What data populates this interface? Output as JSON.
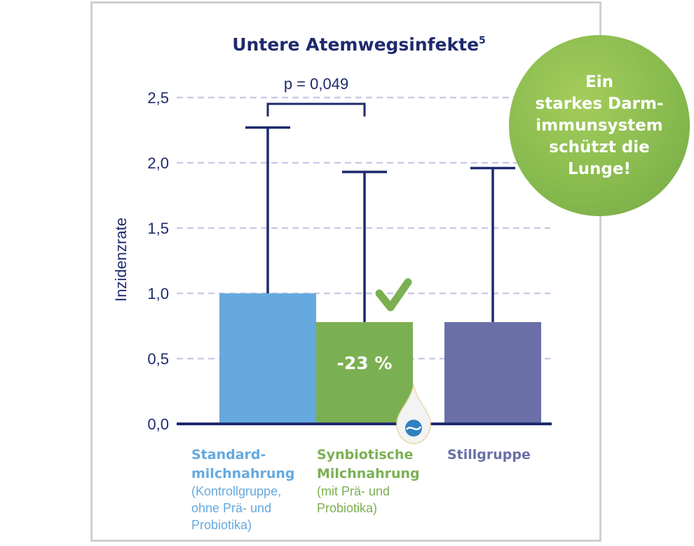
{
  "colors": {
    "navy": "#1e2a6e",
    "standard": "#65a9df",
    "synbiotic": "#7bb052",
    "stillgruppe": "#6a6fa8",
    "gridline": "#c9cce6",
    "badge": "#86b94d"
  },
  "badge": {
    "lines": [
      "Ein",
      "starkes Darm-",
      "immunsystem",
      "schützt die",
      "Lunge!"
    ]
  },
  "icons": {
    "check": "checkmark-icon",
    "drop": "droplet-logo-icon"
  },
  "chart_data": {
    "type": "bar",
    "title": "Untere Atemwegsinfekte",
    "title_superscript": "5",
    "ylabel": "Inzidenzrate",
    "xlabel": "",
    "ylim": [
      0,
      2.5
    ],
    "yticks": [
      0,
      0.5,
      1.0,
      1.5,
      2.0,
      2.5
    ],
    "ytick_labels": [
      "0,0",
      "0,5",
      "1,0",
      "1,5",
      "2,0",
      "2,5"
    ],
    "grid": true,
    "categories": [
      {
        "name": "Standard-milchnahrung",
        "line1": "Standard-",
        "line2": "milchnahrung",
        "note": [
          "(Kontrollgruppe,",
          "ohne Prä- und",
          "Probiotika)"
        ]
      },
      {
        "name": "Synbiotische Milchnahrung",
        "line1": "Synbiotische",
        "line2": "Milchnahrung",
        "note": [
          "(mit Prä- und",
          "Probiotika)"
        ]
      },
      {
        "name": "Stillgruppe",
        "line1": "Stillgruppe",
        "line2": "",
        "note": []
      }
    ],
    "values": [
      1.0,
      0.78,
      0.78
    ],
    "error_upper": [
      2.27,
      1.93,
      1.96
    ],
    "bar_labels": [
      "",
      "-23 %",
      ""
    ],
    "significance": {
      "between": [
        0,
        1
      ],
      "label": "p = 0,049"
    }
  }
}
